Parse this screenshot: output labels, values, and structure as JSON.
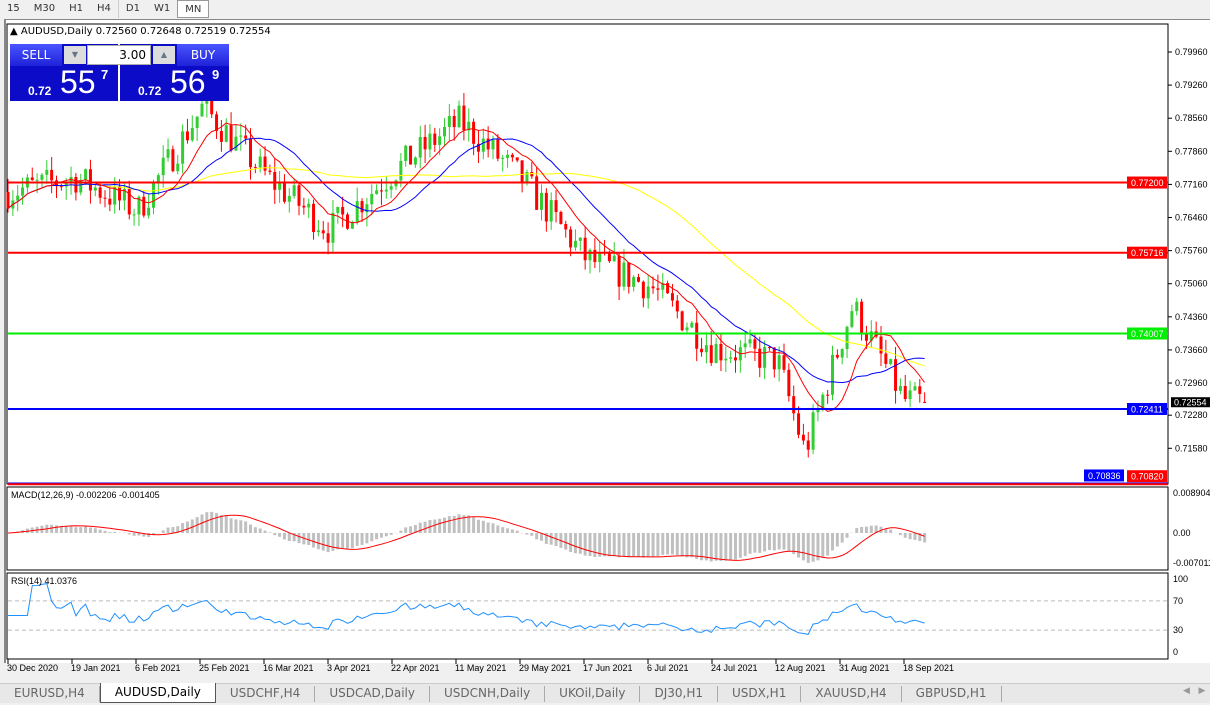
{
  "timeframes": [
    "15",
    "M30",
    "H1",
    "H4",
    "D1",
    "W1",
    "MN"
  ],
  "active_timeframe": "MN",
  "chart": {
    "symbol_line": "AUDUSD,Daily  0.72560 0.72648 0.72519 0.72554"
  },
  "trade_panel": {
    "sell_label": "SELL",
    "buy_label": "BUY",
    "lot": "3.00",
    "sell": {
      "prefix": "0.72",
      "big": "55",
      "small": "7"
    },
    "buy": {
      "prefix": "0.72",
      "big": "56",
      "small": "9"
    }
  },
  "indicators": {
    "macd_label": "MACD(12,26,9) -0.002206 -0.001405",
    "rsi_label": "RSI(14) 41.0376"
  },
  "colors": {
    "bull": "#32cd32",
    "bear": "#ff0000",
    "ma_fast": "#ff0000",
    "ma_mid": "#0000ff",
    "ma_slow": "#ffff00",
    "macd_hist": "#c0c0c0",
    "macd_signal": "#ff0000",
    "rsi": "#1e90ff"
  },
  "chart_data": {
    "type": "candlestick",
    "price_ticks": [
      "0.79960",
      "0.79260",
      "0.78560",
      "0.77860",
      "0.77160",
      "0.76460",
      "0.75760",
      "0.75060",
      "0.74360",
      "0.73660",
      "0.72960",
      "0.72280",
      "0.71580"
    ],
    "ylim": [
      0.7082,
      0.8045
    ],
    "date_ticks": [
      "30 Dec 2020",
      "19 Jan 2021",
      "6 Feb 2021",
      "25 Feb 2021",
      "16 Mar 2021",
      "3 Apr 2021",
      "22 Apr 2021",
      "11 May 2021",
      "29 May 2021",
      "17 Jun 2021",
      "6 Jul 2021",
      "24 Jul 2021",
      "12 Aug 2021",
      "31 Aug 2021",
      "18 Sep 2021"
    ],
    "close_approx": [
      {
        "date": "30 Dec 2020",
        "close": 0.77
      },
      {
        "date": "19 Jan 2021",
        "close": 0.773
      },
      {
        "date": "6 Feb 2021",
        "close": 0.766
      },
      {
        "date": "25 Feb 2021",
        "close": 0.788
      },
      {
        "date": "16 Mar 2021",
        "close": 0.773
      },
      {
        "date": "3 Apr 2021",
        "close": 0.762
      },
      {
        "date": "22 Apr 2021",
        "close": 0.7745
      },
      {
        "date": "11 May 2021",
        "close": 0.785
      },
      {
        "date": "29 May 2021",
        "close": 0.773
      },
      {
        "date": "17 Jun 2021",
        "close": 0.756
      },
      {
        "date": "6 Jul 2021",
        "close": 0.75
      },
      {
        "date": "24 Jul 2021",
        "close": 0.737
      },
      {
        "date": "12 Aug 2021",
        "close": 0.7345
      },
      {
        "date": "20 Aug 2021",
        "close": 0.715
      },
      {
        "date": "3 Sep 2021",
        "close": 0.746
      },
      {
        "date": "18 Sep 2021",
        "close": 0.726
      },
      {
        "date": "24 Sep 2021",
        "close": 0.72554
      }
    ],
    "hlines": [
      {
        "price": "0.77200",
        "color": "#ff0000"
      },
      {
        "price": "0.75716",
        "color": "#ff0000"
      },
      {
        "price": "0.74007",
        "color": "#00ee00"
      },
      {
        "price": "0.72411",
        "color": "#0000ff"
      },
      {
        "price": "0.70836",
        "color": "#0000ff"
      },
      {
        "price": "0.70820",
        "color": "#ff0000"
      }
    ],
    "bid_label": "0.72554",
    "macd_ticks": [
      "0.008904",
      "0.00",
      "-0.007011"
    ],
    "rsi_ticks": [
      "100",
      "70",
      "30",
      "0"
    ]
  },
  "tabs": [
    "EURUSD,H4",
    "AUDUSD,Daily",
    "USDCHF,H4",
    "USDCAD,Daily",
    "USDCNH,Daily",
    "UKOil,Daily",
    "DJ30,H1",
    "USDX,H1",
    "XAUUSD,H4",
    "GBPUSD,H1"
  ],
  "active_tab": "AUDUSD,Daily"
}
